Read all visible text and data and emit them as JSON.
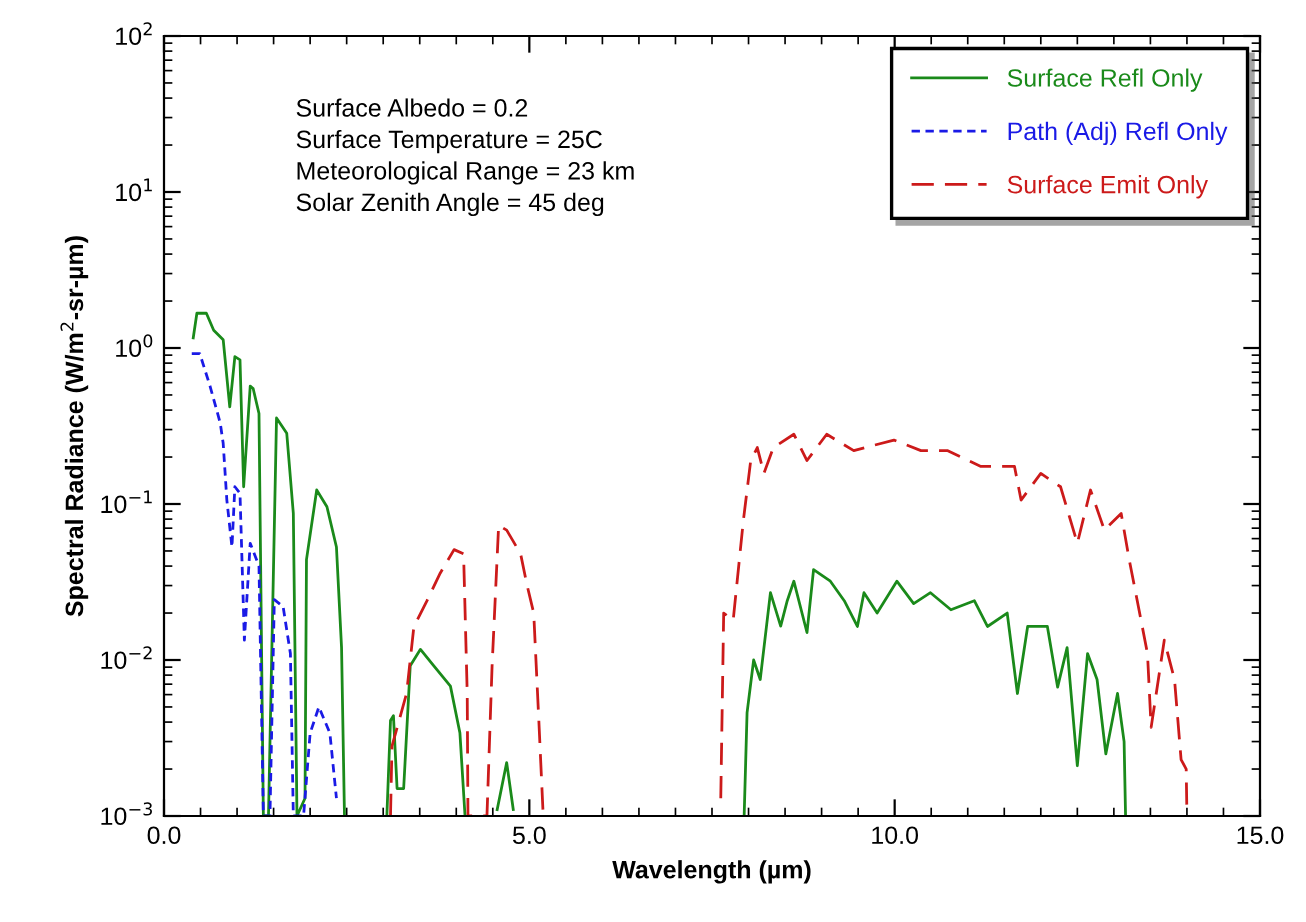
{
  "chart_data": {
    "type": "line",
    "xlabel": "Wavelength (µm)",
    "ylabel": "Spectral Radiance (W/m$^{2}$-sr-µm)",
    "xlim": [
      0,
      15
    ],
    "xticks": [
      {
        "value": 0,
        "label": "0.0"
      },
      {
        "value": 5,
        "label": "5.0"
      },
      {
        "value": 10,
        "label": "10.0"
      },
      {
        "value": 15,
        "label": "15.0"
      }
    ],
    "ylim": [
      0.001,
      100
    ],
    "yticks": [
      {
        "value": 0.001,
        "label": "10$^{−3}$"
      },
      {
        "value": 0.01,
        "label": "10$^{−2}$"
      },
      {
        "value": 0.1,
        "label": "10$^{−1}$"
      },
      {
        "value": 1,
        "label": "10$^{0}$"
      },
      {
        "value": 10,
        "label": "10$^{1}$"
      },
      {
        "value": 100,
        "label": "10$^{2}$"
      }
    ],
    "log": "y",
    "grid": false,
    "legend": "top right",
    "marker": "none",
    "annotations": [
      "Surface Albedo = 0.2\nSurface Temperature = 25C\nMeteorological Range = 23 km\nSolar Zenith Angle = 45 deg"
    ],
    "series": [
      {
        "name": "Surface Refl Only",
        "color": "#1a8a1a",
        "line_style": "solid",
        "x": [
          0.4,
          0.45,
          0.58,
          0.68,
          0.81,
          0.9,
          0.97,
          1.04,
          1.09,
          1.18,
          1.22,
          1.3,
          1.36,
          1.43,
          1.54,
          1.68,
          1.77,
          1.82,
          1.93,
          1.95,
          2.09,
          2.23,
          2.36,
          2.43,
          2.47,
          2.6,
          3.05,
          3.1,
          3.14,
          3.19,
          3.28,
          3.37,
          3.51,
          3.69,
          3.92,
          4.05,
          4.12,
          4.3,
          4.56,
          4.69,
          4.78,
          5.0,
          7.94,
          7.98,
          8.07,
          8.16,
          8.3,
          8.44,
          8.53,
          8.62,
          8.8,
          8.89,
          9.12,
          9.31,
          9.49,
          9.58,
          9.76,
          10.03,
          10.26,
          10.49,
          10.77,
          11.09,
          11.27,
          11.54,
          11.68,
          11.82,
          12.09,
          12.23,
          12.36,
          12.5,
          12.64,
          12.77,
          12.89,
          13.05,
          13.14,
          13.16
        ],
        "values": [
          1.16,
          1.67,
          1.67,
          1.3,
          1.13,
          0.42,
          0.88,
          0.84,
          0.129,
          0.57,
          0.55,
          0.38,
          0.001,
          0.001,
          0.356,
          0.284,
          0.087,
          0.001,
          0.0013,
          0.044,
          0.123,
          0.096,
          0.053,
          0.012,
          0.001,
          null,
          0.001,
          0.0041,
          0.0044,
          0.0015,
          0.0015,
          0.0092,
          0.0117,
          0.0092,
          0.0068,
          0.0034,
          0.001,
          null,
          0.0011,
          0.0022,
          0.0011,
          null,
          0.001,
          0.0046,
          0.01,
          0.0075,
          0.027,
          0.0165,
          0.024,
          0.032,
          0.015,
          0.038,
          0.032,
          0.024,
          0.0164,
          0.027,
          0.02,
          0.032,
          0.023,
          0.027,
          0.021,
          0.024,
          0.0164,
          0.02,
          0.0061,
          0.0164,
          0.0164,
          0.0067,
          0.012,
          0.0021,
          0.011,
          0.0075,
          0.0025,
          0.0061,
          0.003,
          0.001
        ]
      },
      {
        "name": "Path (Adj) Refl Only",
        "color": "#1a1ae6",
        "line_style": "dotted",
        "x": [
          0.38,
          0.49,
          0.63,
          0.77,
          0.81,
          0.86,
          0.93,
          0.97,
          1.04,
          1.1,
          1.18,
          1.3,
          1.36,
          1.45,
          1.51,
          1.63,
          1.73,
          1.77,
          1.91,
          2.0,
          2.12,
          2.27,
          2.36
        ],
        "values": [
          0.92,
          0.92,
          0.57,
          0.33,
          0.245,
          0.106,
          0.053,
          0.129,
          0.117,
          0.0134,
          0.056,
          0.04,
          0.001,
          0.001,
          0.0244,
          0.022,
          0.011,
          0.001,
          0.001,
          0.0034,
          0.005,
          0.0034,
          0.0013
        ]
      },
      {
        "name": "Surface Emit Only",
        "color": "#cc1a1a",
        "line_style": "dashed",
        "x": [
          3.1,
          3.12,
          3.32,
          3.42,
          3.6,
          3.78,
          3.97,
          4.1,
          4.15,
          4.16,
          4.42,
          4.49,
          4.58,
          4.69,
          4.88,
          4.97,
          5.06,
          5.13,
          5.19,
          6.0,
          7.62,
          7.66,
          7.79,
          7.93,
          8.03,
          8.12,
          8.21,
          8.34,
          8.62,
          8.8,
          9.07,
          9.44,
          9.99,
          10.36,
          10.72,
          11.18,
          11.64,
          11.73,
          12.0,
          12.27,
          12.5,
          12.68,
          12.87,
          13.1,
          13.21,
          13.32,
          13.46,
          13.51,
          13.69,
          13.83,
          13.92,
          13.99,
          14.0
        ],
        "values": [
          0.001,
          0.0028,
          0.0061,
          0.0164,
          0.024,
          0.036,
          0.051,
          0.048,
          0.0061,
          0.001,
          0.001,
          0.0091,
          0.073,
          0.068,
          0.048,
          0.03,
          0.02,
          0.0041,
          0.001,
          null,
          0.0013,
          0.02,
          0.018,
          0.079,
          0.19,
          0.23,
          0.157,
          0.23,
          0.28,
          0.19,
          0.28,
          0.22,
          0.257,
          0.22,
          0.22,
          0.174,
          0.174,
          0.106,
          0.157,
          0.129,
          0.056,
          0.123,
          0.068,
          0.087,
          0.044,
          0.024,
          0.011,
          0.0037,
          0.0134,
          0.0075,
          0.0023,
          0.002,
          0.001
        ]
      }
    ]
  }
}
